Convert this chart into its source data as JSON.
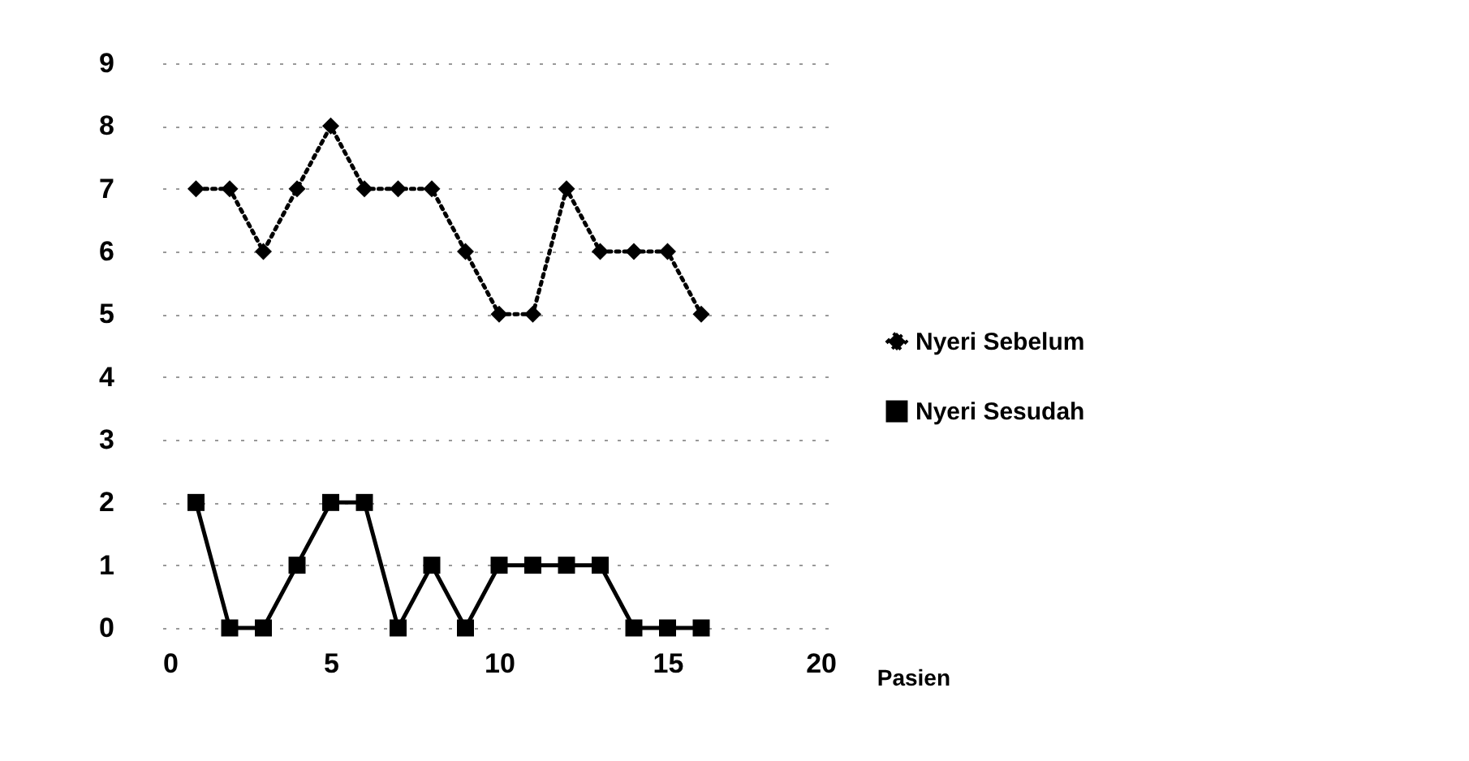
{
  "chart_data": {
    "type": "line",
    "xlabel": "Pasien",
    "x": [
      1,
      2,
      3,
      4,
      5,
      6,
      7,
      8,
      9,
      10,
      11,
      12,
      13,
      14,
      15,
      16
    ],
    "xlim": [
      0,
      20
    ],
    "xticks": [
      0,
      5,
      10,
      15,
      20
    ],
    "ylim": [
      0,
      9
    ],
    "yticks": [
      0,
      1,
      2,
      3,
      4,
      5,
      6,
      7,
      8,
      9
    ],
    "grid": "y",
    "legend": "right",
    "series": [
      {
        "name": "Nyeri Sebelum",
        "color": "#000000",
        "marker": "diamond",
        "line_style": "dotted",
        "values": [
          7,
          7,
          6,
          7,
          8,
          7,
          7,
          7,
          6,
          5,
          5,
          7,
          6,
          6,
          6,
          5
        ]
      },
      {
        "name": "Nyeri Sesudah",
        "color": "#000000",
        "marker": "square",
        "line_style": "solid",
        "values": [
          2,
          0,
          0,
          1,
          2,
          2,
          0,
          1,
          0,
          1,
          1,
          1,
          1,
          0,
          0,
          0
        ]
      }
    ]
  }
}
